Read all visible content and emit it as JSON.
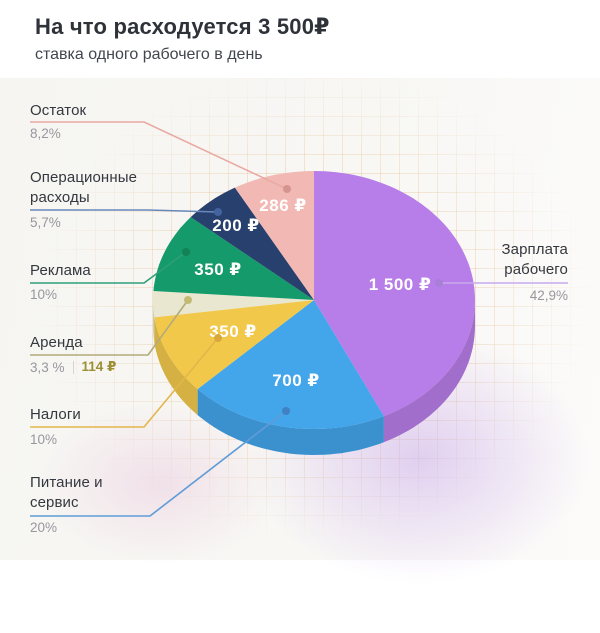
{
  "header": {
    "title": "На что расходуется 3 500₽",
    "subtitle": "ставка одного рабочего в день"
  },
  "chart_data": {
    "type": "pie",
    "title": "На что расходуется 3 500₽",
    "subtitle": "ставка одного рабочего в день",
    "total_value": 3500,
    "currency": "₽",
    "start_angle": "12-o-clock",
    "direction": "clockwise",
    "style": "3d-pie",
    "legend_position": "left-and-right-callouts",
    "slices": [
      {
        "key": "zarplata",
        "name": "Зарплата рабочего",
        "value": 1500,
        "value_label": "1 500 ₽",
        "percent_label": "42,9%",
        "color": "#b77de8",
        "line_color": "#c7a9ee",
        "dot_color": "#a77fd6",
        "label_r": 0.55
      },
      {
        "key": "pitanie",
        "name": "Питание и сервис",
        "value": 700,
        "value_label": "700 ₽",
        "percent_label": "20%",
        "color": "#43a5ea",
        "line_color": "#5f9cd8",
        "dot_color": "#3f81c2",
        "label_r": 0.63
      },
      {
        "key": "nalogi",
        "name": "Налоги",
        "value": 350,
        "value_label": "350 ₽",
        "percent_label": "10%",
        "color": "#f2c84b",
        "line_color": "#e2b64a",
        "dot_color": "#d8a93a",
        "label_r": 0.56
      },
      {
        "key": "arenda",
        "name": "Аренда",
        "value": 114,
        "value_label": null,
        "percent_label": "3,3 %",
        "extra_value_label": "114 ₽",
        "color": "#e9e7cf",
        "line_color": "#b3ab7a",
        "dot_color": "#c3ba74",
        "label_r": 0
      },
      {
        "key": "reklama",
        "name": "Реклама",
        "value": 350,
        "value_label": "350 ₽",
        "percent_label": "10%",
        "color": "#149a6b",
        "line_color": "#2f9e79",
        "dot_color": "#148257",
        "label_r": 0.64
      },
      {
        "key": "oper",
        "name": "Операционные расходы",
        "value": 200,
        "value_label": "200 ₽",
        "percent_label": "5,7%",
        "color": "#28406e",
        "line_color": "#6888bb",
        "dot_color": "#44639f",
        "label_r": 0.76
      },
      {
        "key": "ostatok",
        "name": "Остаток",
        "value": 286,
        "value_label": "286 ₽",
        "percent_label": "8,2%",
        "color": "#f2b9b4",
        "line_color": "#e9aaa4",
        "dot_color": "#d6948f",
        "label_r": 0.76
      }
    ]
  }
}
